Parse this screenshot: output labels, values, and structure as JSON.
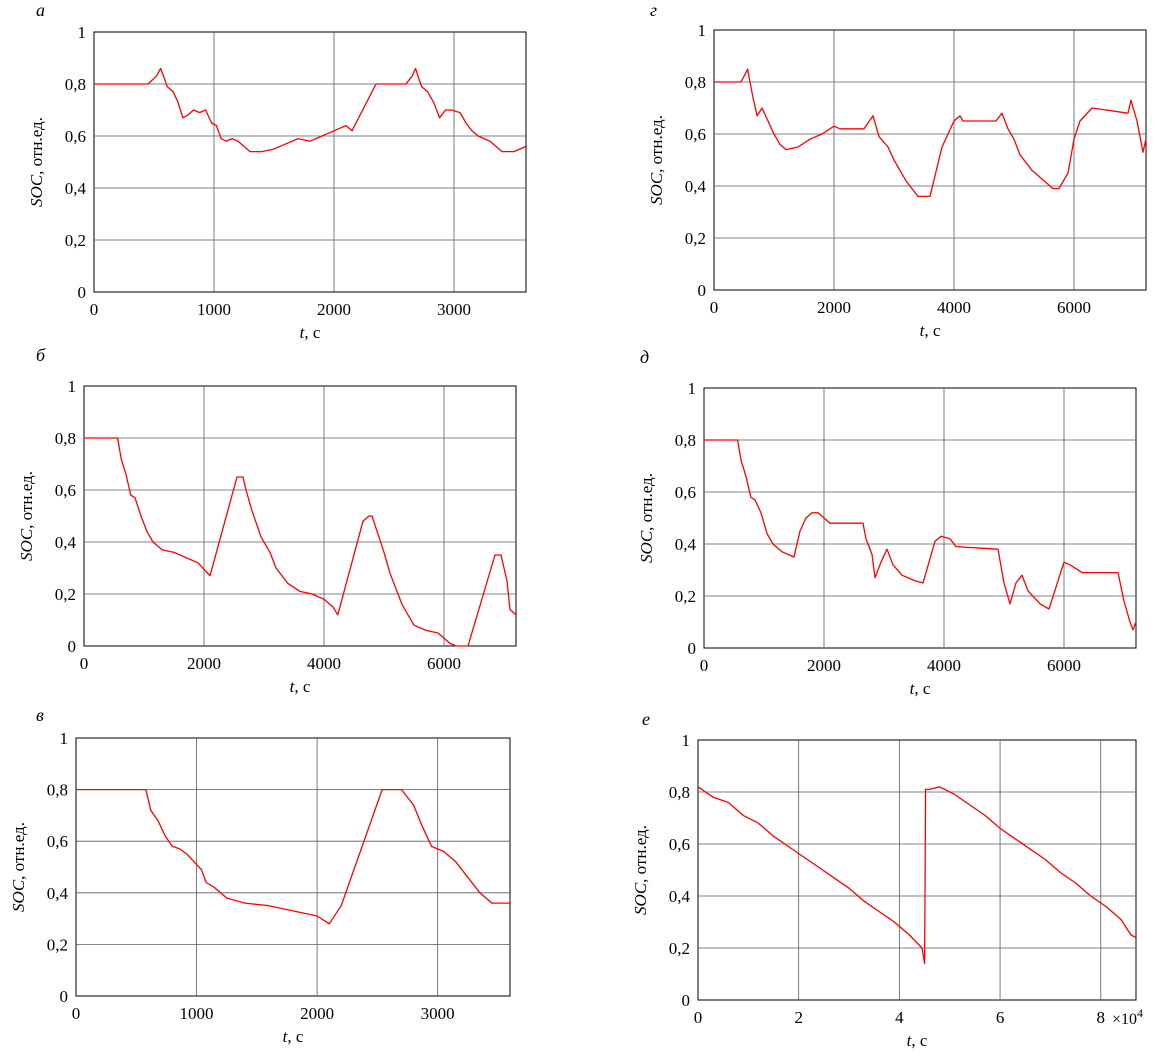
{
  "figure": {
    "colors": {
      "series": "#ff0000",
      "grid": "#5a5a5a",
      "axes": "#000000",
      "background": "#ffffff"
    }
  },
  "chart_data": [
    {
      "id": "a",
      "letter": "а",
      "type": "line",
      "xlabel_var": "t",
      "xlabel_unit": ", с",
      "ylabel_var": "SOC",
      "ylabel_unit": ", отн.ед.",
      "xlim": [
        0,
        3600
      ],
      "ylim": [
        0,
        1
      ],
      "xticks": [
        0,
        1000,
        2000,
        3000
      ],
      "xtick_labels": [
        "0",
        "1000",
        "2000",
        "3000"
      ],
      "yticks": [
        0,
        0.2,
        0.4,
        0.6,
        0.8,
        1
      ],
      "ytick_labels": [
        "0",
        "0,2",
        "0,4",
        "0,6",
        "0,8",
        "1"
      ],
      "exponent": "",
      "series": [
        {
          "name": "SOC",
          "x": [
            0,
            450,
            520,
            555,
            580,
            610,
            660,
            700,
            740,
            780,
            830,
            880,
            930,
            980,
            1020,
            1060,
            1100,
            1150,
            1200,
            1250,
            1300,
            1400,
            1500,
            1600,
            1700,
            1800,
            1900,
            2000,
            2100,
            2150,
            2350,
            2600,
            2650,
            2680,
            2700,
            2730,
            2780,
            2830,
            2880,
            2930,
            2980,
            3050,
            3100,
            3150,
            3200,
            3250,
            3300,
            3350,
            3400,
            3500,
            3600
          ],
          "values": [
            0.8,
            0.8,
            0.83,
            0.86,
            0.83,
            0.79,
            0.77,
            0.73,
            0.67,
            0.68,
            0.7,
            0.69,
            0.7,
            0.65,
            0.64,
            0.59,
            0.58,
            0.59,
            0.58,
            0.56,
            0.54,
            0.54,
            0.55,
            0.57,
            0.59,
            0.58,
            0.6,
            0.62,
            0.64,
            0.62,
            0.8,
            0.8,
            0.83,
            0.86,
            0.83,
            0.79,
            0.77,
            0.73,
            0.67,
            0.7,
            0.7,
            0.69,
            0.65,
            0.62,
            0.6,
            0.59,
            0.58,
            0.56,
            0.54,
            0.54,
            0.56
          ]
        }
      ]
    },
    {
      "id": "b",
      "letter": "б",
      "type": "line",
      "xlabel_var": "t",
      "xlabel_unit": ", с",
      "ylabel_var": "SOC",
      "ylabel_unit": ", отн.ед.",
      "xlim": [
        0,
        7200
      ],
      "ylim": [
        0,
        1
      ],
      "xticks": [
        0,
        2000,
        4000,
        6000
      ],
      "xtick_labels": [
        "0",
        "2000",
        "4000",
        "6000"
      ],
      "yticks": [
        0,
        0.2,
        0.4,
        0.6,
        0.8,
        1
      ],
      "ytick_labels": [
        "0",
        "0,2",
        "0,4",
        "0,6",
        "0,8",
        "1"
      ],
      "exponent": "",
      "series": [
        {
          "name": "SOC",
          "x": [
            0,
            560,
            620,
            700,
            780,
            850,
            950,
            1050,
            1150,
            1300,
            1500,
            1700,
            1900,
            2100,
            2550,
            2650,
            2700,
            2800,
            2950,
            3100,
            3200,
            3400,
            3600,
            3800,
            4000,
            4150,
            4230,
            4650,
            4750,
            4800,
            4900,
            5000,
            5100,
            5200,
            5300,
            5400,
            5500,
            5700,
            5900,
            6000,
            6100,
            6200,
            6350,
            6400,
            6850,
            6950,
            7000,
            7050,
            7100,
            7200
          ],
          "values": [
            0.8,
            0.8,
            0.72,
            0.66,
            0.58,
            0.57,
            0.5,
            0.44,
            0.4,
            0.37,
            0.36,
            0.34,
            0.32,
            0.27,
            0.65,
            0.65,
            0.6,
            0.52,
            0.42,
            0.36,
            0.3,
            0.24,
            0.21,
            0.2,
            0.18,
            0.15,
            0.12,
            0.48,
            0.5,
            0.5,
            0.43,
            0.36,
            0.28,
            0.22,
            0.16,
            0.12,
            0.08,
            0.06,
            0.05,
            0.03,
            0.01,
            0.0,
            0.0,
            0.0,
            0.35,
            0.35,
            0.3,
            0.25,
            0.14,
            0.12
          ]
        }
      ]
    },
    {
      "id": "c",
      "letter": "в",
      "type": "line",
      "xlabel_var": "t",
      "xlabel_unit": ", с",
      "ylabel_var": "SOC",
      "ylabel_unit": ", отн.ед.",
      "xlim": [
        0,
        3600
      ],
      "ylim": [
        0,
        1
      ],
      "xticks": [
        0,
        1000,
        2000,
        3000
      ],
      "xtick_labels": [
        "0",
        "1000",
        "2000",
        "3000"
      ],
      "yticks": [
        0,
        0.2,
        0.4,
        0.6,
        0.8,
        1
      ],
      "ytick_labels": [
        "0",
        "0,2",
        "0,4",
        "0,6",
        "0,8",
        "1"
      ],
      "exponent": "",
      "series": [
        {
          "name": "SOC",
          "x": [
            0,
            580,
            620,
            680,
            740,
            800,
            860,
            920,
            980,
            1040,
            1080,
            1150,
            1250,
            1400,
            1600,
            1800,
            2000,
            2100,
            2200,
            2540,
            2700,
            2800,
            2870,
            2950,
            3050,
            3150,
            3250,
            3350,
            3450,
            3600
          ],
          "values": [
            0.8,
            0.8,
            0.72,
            0.68,
            0.62,
            0.58,
            0.57,
            0.55,
            0.52,
            0.49,
            0.44,
            0.42,
            0.38,
            0.36,
            0.35,
            0.33,
            0.31,
            0.28,
            0.35,
            0.8,
            0.8,
            0.74,
            0.66,
            0.58,
            0.56,
            0.52,
            0.46,
            0.4,
            0.36,
            0.36
          ]
        }
      ]
    },
    {
      "id": "d",
      "letter": "г",
      "type": "line",
      "xlabel_var": "t",
      "xlabel_unit": ", с",
      "ylabel_var": "SOC",
      "ylabel_unit": ", отн.ед.",
      "xlim": [
        0,
        7200
      ],
      "ylim": [
        0,
        1
      ],
      "xticks": [
        0,
        2000,
        4000,
        6000
      ],
      "xtick_labels": [
        "0",
        "2000",
        "4000",
        "6000"
      ],
      "yticks": [
        0,
        0.2,
        0.4,
        0.6,
        0.8,
        1
      ],
      "ytick_labels": [
        "0",
        "0,2",
        "0,4",
        "0,6",
        "0,8",
        "1"
      ],
      "exponent": "",
      "series": [
        {
          "name": "SOC",
          "x": [
            0,
            450,
            520,
            560,
            600,
            650,
            720,
            800,
            900,
            1000,
            1100,
            1200,
            1400,
            1600,
            1800,
            2000,
            2100,
            2500,
            2650,
            2750,
            2900,
            3000,
            3100,
            3200,
            3300,
            3400,
            3600,
            3800,
            4000,
            4100,
            4150,
            4700,
            4800,
            4900,
            5000,
            5100,
            5300,
            5500,
            5650,
            5750,
            5900,
            6000,
            6100,
            6300,
            6900,
            6950,
            7050,
            7150,
            7200
          ],
          "values": [
            0.8,
            0.8,
            0.83,
            0.85,
            0.8,
            0.74,
            0.67,
            0.7,
            0.65,
            0.6,
            0.56,
            0.54,
            0.55,
            0.58,
            0.6,
            0.63,
            0.62,
            0.62,
            0.67,
            0.59,
            0.55,
            0.5,
            0.46,
            0.42,
            0.39,
            0.36,
            0.36,
            0.55,
            0.65,
            0.67,
            0.65,
            0.65,
            0.68,
            0.62,
            0.58,
            0.52,
            0.46,
            0.42,
            0.39,
            0.39,
            0.45,
            0.58,
            0.65,
            0.7,
            0.68,
            0.73,
            0.65,
            0.53,
            0.58
          ]
        }
      ]
    },
    {
      "id": "e",
      "letter": "д",
      "type": "line",
      "xlabel_var": "t",
      "xlabel_unit": ", с",
      "ylabel_var": "SOC",
      "ylabel_unit": ", отн.ед.",
      "xlim": [
        0,
        7200
      ],
      "ylim": [
        0,
        1
      ],
      "xticks": [
        0,
        2000,
        4000,
        6000
      ],
      "xtick_labels": [
        "0",
        "2000",
        "4000",
        "6000"
      ],
      "yticks": [
        0,
        0.2,
        0.4,
        0.6,
        0.8,
        1
      ],
      "ytick_labels": [
        "0",
        "0,2",
        "0,4",
        "0,6",
        "0,8",
        "1"
      ],
      "exponent": "",
      "series": [
        {
          "name": "SOC",
          "x": [
            0,
            560,
            620,
            700,
            780,
            850,
            950,
            1050,
            1150,
            1300,
            1400,
            1500,
            1600,
            1700,
            1800,
            1900,
            2100,
            2650,
            2700,
            2800,
            2850,
            2950,
            3050,
            3150,
            3300,
            3500,
            3650,
            3750,
            3850,
            3950,
            4100,
            4200,
            4900,
            5000,
            5100,
            5200,
            5300,
            5400,
            5600,
            5750,
            6000,
            6100,
            6300,
            6900,
            7000,
            7100,
            7150,
            7200
          ],
          "values": [
            0.8,
            0.8,
            0.72,
            0.66,
            0.58,
            0.57,
            0.52,
            0.44,
            0.4,
            0.37,
            0.36,
            0.35,
            0.45,
            0.5,
            0.52,
            0.52,
            0.48,
            0.48,
            0.42,
            0.36,
            0.27,
            0.33,
            0.38,
            0.32,
            0.28,
            0.26,
            0.25,
            0.33,
            0.41,
            0.43,
            0.42,
            0.39,
            0.38,
            0.25,
            0.17,
            0.25,
            0.28,
            0.22,
            0.17,
            0.15,
            0.33,
            0.32,
            0.29,
            0.29,
            0.18,
            0.1,
            0.07,
            0.1
          ]
        }
      ]
    },
    {
      "id": "f",
      "letter": "е",
      "type": "line",
      "xlabel_var": "t",
      "xlabel_unit": ", с",
      "ylabel_var": "SOC",
      "ylabel_unit": ", отн.ед.",
      "xlim": [
        0,
        8.7
      ],
      "ylim": [
        0,
        1
      ],
      "xticks": [
        0,
        2,
        4,
        6,
        8
      ],
      "xtick_labels": [
        "0",
        "2",
        "4",
        "6",
        "8"
      ],
      "yticks": [
        0,
        0.2,
        0.4,
        0.6,
        0.8,
        1
      ],
      "ytick_labels": [
        "0",
        "0,2",
        "0,4",
        "0,6",
        "0,8",
        "1"
      ],
      "exponent": "×10",
      "exponent_power": "4",
      "series": [
        {
          "name": "SOC",
          "x": [
            0,
            0.3,
            0.6,
            0.9,
            1.2,
            1.5,
            1.8,
            2.1,
            2.4,
            2.7,
            3.0,
            3.3,
            3.6,
            3.9,
            4.2,
            4.45,
            4.5,
            4.52,
            4.6,
            4.8,
            5.1,
            5.4,
            5.7,
            6.0,
            6.3,
            6.6,
            6.9,
            7.2,
            7.5,
            7.8,
            8.1,
            8.4,
            8.6,
            8.7
          ],
          "values": [
            0.82,
            0.78,
            0.76,
            0.71,
            0.68,
            0.63,
            0.59,
            0.55,
            0.51,
            0.47,
            0.43,
            0.38,
            0.34,
            0.3,
            0.25,
            0.2,
            0.14,
            0.81,
            0.81,
            0.82,
            0.79,
            0.75,
            0.71,
            0.66,
            0.62,
            0.58,
            0.54,
            0.49,
            0.45,
            0.4,
            0.36,
            0.31,
            0.25,
            0.24
          ]
        }
      ]
    }
  ]
}
